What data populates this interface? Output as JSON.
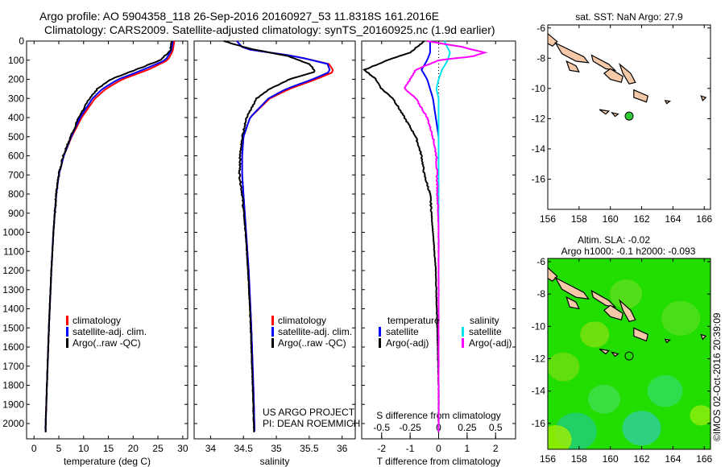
{
  "header": {
    "line1": "Argo profile: AO 5904358_118 26-Sep-2016 20160927_53 11.8318S 161.2016E",
    "line2": "Climatology: CARS2009. Satellite-adjusted climatology: synTS_20160925.nc (1.9d earlier)"
  },
  "colors": {
    "climatology": "#ff0000",
    "satellite": "#0000ff",
    "argo": "#000000",
    "sal_satellite": "#00e5ee",
    "sal_argo": "#ff00ff",
    "land": "#f5c8a8",
    "float_marker": "#33cc33",
    "sla_field": "#22dd00"
  },
  "chart_data": [
    {
      "type": "line",
      "name": "temperature_profile",
      "xlabel": "temperature (deg C)",
      "ylabel": "",
      "xlim": [
        -1.5,
        31
      ],
      "ylim": [
        2080,
        0
      ],
      "xticks": [
        0,
        5,
        10,
        15,
        20,
        25,
        30
      ],
      "yticks": [
        0,
        100,
        200,
        300,
        400,
        500,
        600,
        700,
        800,
        900,
        1000,
        1100,
        1200,
        1300,
        1400,
        1500,
        1600,
        1700,
        1800,
        1900,
        2000
      ],
      "legend": [
        "climatology",
        "satellite-adj. clim.",
        "Argo(..raw -QC)"
      ],
      "legend_position": "lower-center",
      "series": [
        {
          "name": "climatology",
          "color": "#ff0000",
          "depth": [
            0,
            50,
            100,
            150,
            200,
            250,
            300,
            400,
            500,
            600,
            700,
            800,
            1000,
            1200,
            1500,
            1800,
            2050
          ],
          "values": [
            28.3,
            28.0,
            27.0,
            23.0,
            17.8,
            14.5,
            12.3,
            9.6,
            7.6,
            6.0,
            5.0,
            4.5,
            3.9,
            3.5,
            3.0,
            2.6,
            2.3
          ]
        },
        {
          "name": "satellite-adj. clim.",
          "color": "#0000ff",
          "depth": [
            0,
            50,
            100,
            150,
            200,
            250,
            300,
            400,
            500,
            600,
            700,
            800,
            1000,
            1200,
            1500,
            1800,
            2050
          ],
          "values": [
            28.0,
            27.7,
            26.5,
            22.0,
            17.0,
            13.8,
            11.8,
            9.3,
            7.5,
            6.0,
            5.0,
            4.5,
            3.9,
            3.5,
            3.0,
            2.6,
            2.3
          ]
        },
        {
          "name": "Argo(..raw -QC)",
          "color": "#000000",
          "depth": [
            0,
            50,
            100,
            150,
            200,
            250,
            300,
            400,
            500,
            600,
            700,
            800,
            1000,
            1200,
            1500,
            1800,
            2050
          ],
          "values": [
            27.8,
            27.5,
            25.5,
            20.5,
            15.5,
            12.8,
            11.2,
            9.0,
            7.4,
            5.9,
            5.0,
            4.5,
            3.9,
            3.5,
            3.0,
            2.6,
            2.3
          ]
        }
      ]
    },
    {
      "type": "line",
      "name": "salinity_profile",
      "xlabel": "salinity",
      "xlim": [
        33.75,
        36.2
      ],
      "ylim": [
        2080,
        0
      ],
      "xticks": [
        34,
        34.5,
        35,
        35.5,
        36
      ],
      "xticklabels": [
        "34",
        "34.5",
        "35",
        "35.5",
        "36"
      ],
      "legend": [
        "climatology",
        "satellite-adj. clim.",
        "Argo(..raw -QC)"
      ],
      "legend_position": "lower-center",
      "annotations": [
        "US ARGO PROJECT",
        "PI: DEAN ROEMMICH"
      ],
      "series": [
        {
          "name": "climatology",
          "color": "#ff0000",
          "depth": [
            0,
            40,
            80,
            120,
            160,
            200,
            250,
            300,
            400,
            500,
            600,
            700,
            800,
            1000,
            1200,
            1500,
            1800,
            2050
          ],
          "values": [
            34.4,
            34.5,
            35.3,
            35.8,
            35.88,
            35.6,
            35.2,
            34.9,
            34.6,
            34.5,
            34.48,
            34.48,
            34.5,
            34.54,
            34.58,
            34.62,
            34.65,
            34.67
          ]
        },
        {
          "name": "satellite-adj. clim.",
          "color": "#0000ff",
          "depth": [
            0,
            40,
            80,
            120,
            160,
            200,
            250,
            300,
            400,
            500,
            600,
            700,
            800,
            1000,
            1200,
            1500,
            1800,
            2050
          ],
          "values": [
            34.4,
            34.5,
            35.3,
            35.78,
            35.82,
            35.55,
            35.15,
            34.88,
            34.6,
            34.5,
            34.48,
            34.48,
            34.5,
            34.54,
            34.58,
            34.62,
            34.65,
            34.67
          ]
        },
        {
          "name": "Argo(..raw -QC)",
          "color": "#000000",
          "depth": [
            0,
            40,
            80,
            120,
            160,
            200,
            250,
            300,
            400,
            500,
            600,
            700,
            800,
            1000,
            1200,
            1500,
            1800,
            2050
          ],
          "values": [
            34.2,
            34.6,
            35.2,
            35.5,
            35.6,
            35.2,
            34.9,
            34.7,
            34.55,
            34.48,
            34.45,
            34.44,
            34.48,
            34.53,
            34.57,
            34.61,
            34.64,
            34.66
          ]
        }
      ]
    },
    {
      "type": "line",
      "name": "difference_profile",
      "xlabel": "T difference from climatology",
      "top_xlabel": "S difference from climatology",
      "xlim": [
        -2.7,
        2.7
      ],
      "xticks": [
        -2,
        -1,
        0,
        1,
        2
      ],
      "top_xticks": [
        -0.5,
        -0.25,
        0,
        0.25,
        0.5
      ],
      "top_xticklabels": [
        "-0.5",
        "-0.25",
        "0",
        "0.25",
        "0.5"
      ],
      "ylim": [
        2080,
        0
      ],
      "legend_titles": [
        "temperature",
        "salinity"
      ],
      "legend": [
        "satellite",
        "Argo(-adj)",
        "satellite",
        "Argo(-adj)"
      ],
      "series": [
        {
          "name": "temperature satellite",
          "color": "#0000ff",
          "depth": [
            0,
            60,
            100,
            150,
            200,
            250,
            300,
            400,
            500,
            600,
            800,
            1000,
            1500,
            2050
          ],
          "values": [
            -0.3,
            -0.3,
            -0.4,
            -0.6,
            -0.4,
            -0.3,
            -0.2,
            -0.1,
            0,
            0,
            0,
            0,
            0,
            0
          ]
        },
        {
          "name": "temperature Argo(-adj)",
          "color": "#000000",
          "depth": [
            0,
            60,
            100,
            150,
            200,
            250,
            300,
            400,
            500,
            600,
            700,
            800,
            1000,
            1200,
            1500,
            1800,
            2050
          ],
          "values": [
            -0.5,
            -1.0,
            -1.8,
            -2.6,
            -2.2,
            -2.0,
            -1.6,
            -1.2,
            -0.8,
            -0.6,
            -0.5,
            -0.3,
            -0.2,
            -0.1,
            -0.05,
            0,
            0
          ]
        },
        {
          "name": "salinity satellite",
          "color": "#00e5ee",
          "depth": [
            0,
            60,
            100,
            150,
            200,
            250,
            300,
            400,
            600,
            800,
            1000,
            1500,
            2050
          ],
          "values": [
            0.05,
            0.1,
            0.08,
            0.03,
            0.0,
            -0.02,
            0.0,
            0.0,
            0,
            0,
            0,
            0,
            0
          ]
        },
        {
          "name": "salinity Argo(-adj)",
          "color": "#ff00ff",
          "depth": [
            0,
            30,
            60,
            80,
            100,
            150,
            200,
            250,
            300,
            400,
            500,
            600,
            800,
            1000,
            1500,
            2050
          ],
          "values": [
            -0.1,
            0.2,
            0.4,
            0.3,
            0.0,
            -0.2,
            -0.25,
            -0.3,
            -0.2,
            -0.1,
            -0.05,
            -0.02,
            -0.01,
            0,
            0,
            0
          ]
        }
      ]
    },
    {
      "type": "map",
      "name": "sst_map",
      "title": "sat. SST: NaN Argo: 27.9",
      "xlim": [
        156,
        166.4
      ],
      "ylim": [
        -18,
        -5.8
      ],
      "xticks": [
        156,
        158,
        160,
        162,
        164,
        166
      ],
      "yticks": [
        -6,
        -8,
        -10,
        -12,
        -14,
        -16
      ],
      "float_position": {
        "lon": 161.2,
        "lat": -11.83
      }
    },
    {
      "type": "heatmap",
      "name": "sla_map",
      "title1": "Altim. SLA: -0.02",
      "title2": "Argo h1000: -0.1 h2000: -0.093",
      "xlim": [
        156,
        166.4
      ],
      "ylim": [
        -17.6,
        -5.8
      ],
      "xticks": [
        156,
        158,
        160,
        162,
        164,
        166
      ],
      "yticks": [
        -6,
        -8,
        -10,
        -12,
        -14,
        -16
      ],
      "float_position": {
        "lon": 161.2,
        "lat": -11.83
      }
    }
  ],
  "credit": "©IMOS 02-Oct-2016 20:39:09"
}
